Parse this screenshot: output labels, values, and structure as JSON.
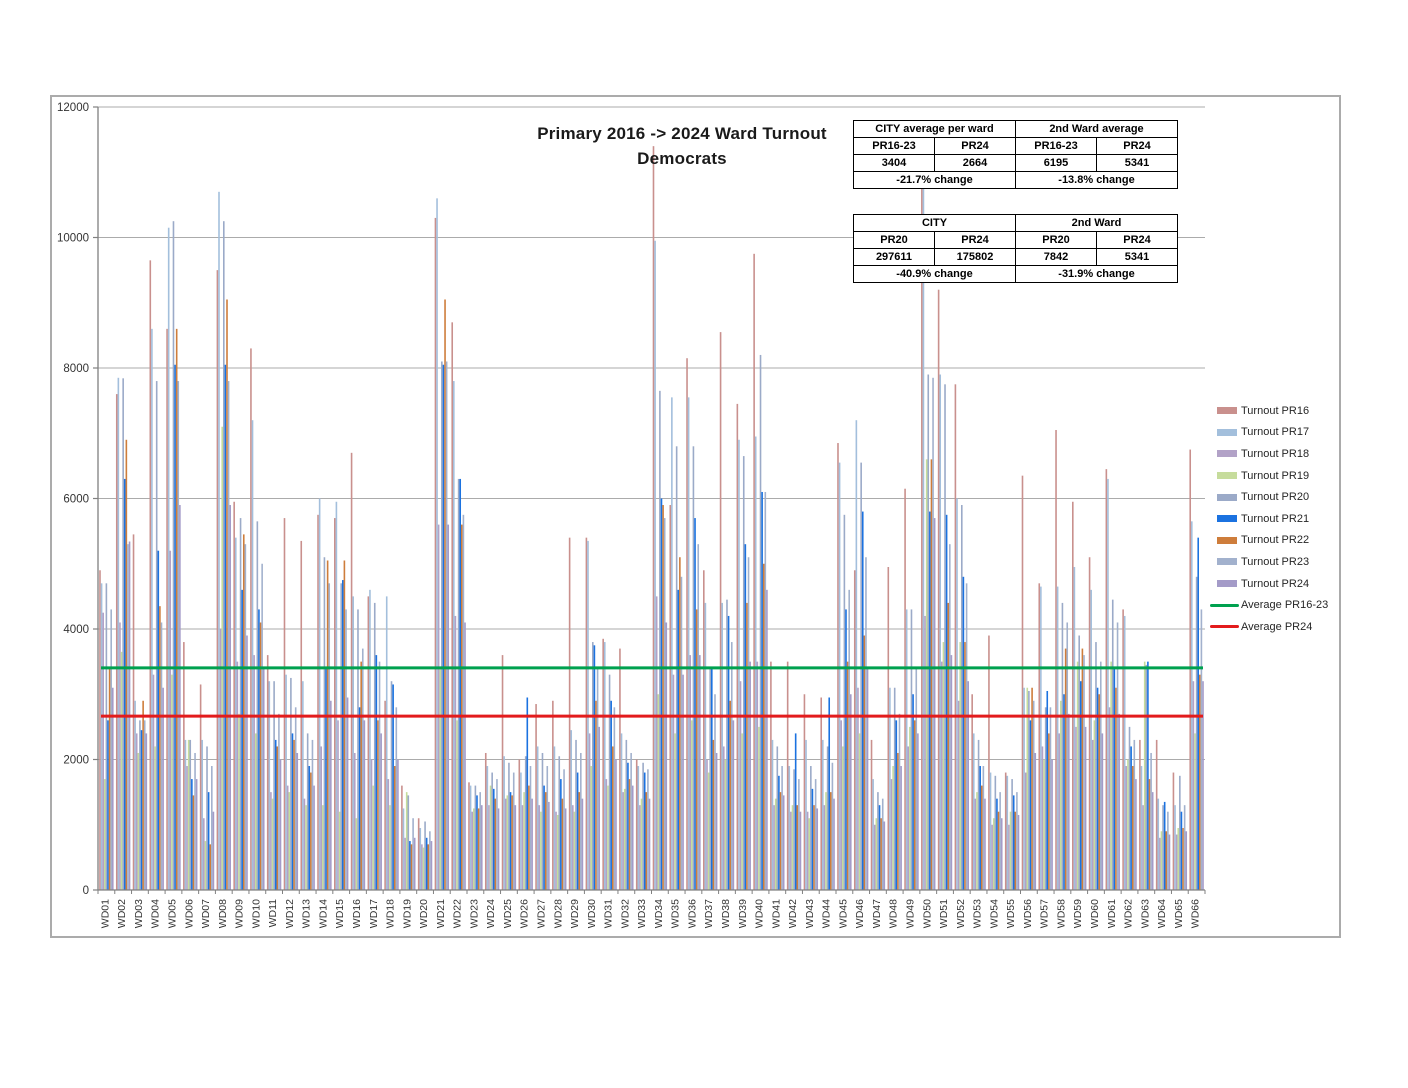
{
  "title": {
    "line1": "Primary 2016 -> 2024 Ward Turnout",
    "line2": "Democrats"
  },
  "tables": [
    {
      "group_headers": [
        "CITY average per ward",
        "2nd Ward average"
      ],
      "col_headers": [
        "PR16-23",
        "PR24",
        "PR16-23",
        "PR24"
      ],
      "values": [
        "3404",
        "2664",
        "6195",
        "5341"
      ],
      "footers": [
        "-21.7% change",
        "-13.8% change"
      ]
    },
    {
      "group_headers": [
        "CITY",
        "2nd Ward"
      ],
      "col_headers": [
        "PR20",
        "PR24",
        "PR20",
        "PR24"
      ],
      "values": [
        "297611",
        "175802",
        "7842",
        "5341"
      ],
      "footers": [
        "-40.9% change",
        "-31.9% change"
      ]
    }
  ],
  "chart_data": {
    "type": "bar",
    "title": "Primary 2016 -> 2024 Ward Turnout Democrats",
    "xlabel": "",
    "ylabel": "",
    "ylim": [
      0,
      12000
    ],
    "ytick_step": 2000,
    "yticks": [
      "0",
      "2000",
      "4000",
      "6000",
      "8000",
      "10000",
      "12000"
    ],
    "grid": true,
    "legend_position": "right",
    "categories": [
      "WD01",
      "WD02",
      "WD03",
      "WD04",
      "WD05",
      "WD06",
      "WD07",
      "WD08",
      "WD09",
      "WD10",
      "WD11",
      "WD12",
      "WD13",
      "WD14",
      "WD15",
      "WD16",
      "WD17",
      "WD18",
      "WD19",
      "WD20",
      "WD21",
      "WD22",
      "WD23",
      "WD24",
      "WD25",
      "WD26",
      "WD27",
      "WD28",
      "WD29",
      "WD30",
      "WD31",
      "WD32",
      "WD33",
      "WD34",
      "WD35",
      "WD36",
      "WD37",
      "WD38",
      "WD39",
      "WD40",
      "WD41",
      "WD42",
      "WD43",
      "WD44",
      "WD45",
      "WD46",
      "WD47",
      "WD48",
      "WD49",
      "WD50",
      "WD51",
      "WD52",
      "WD53",
      "WD54",
      "WD55",
      "WD56",
      "WD57",
      "WD58",
      "WD59",
      "WD60",
      "WD61",
      "WD62",
      "WD63",
      "WD64",
      "WD65",
      "WD66"
    ],
    "series": [
      {
        "name": "Turnout PR16",
        "color": "#C9908D",
        "values": [
          4900,
          7600,
          5450,
          9650,
          8600,
          3800,
          3150,
          9500,
          5950,
          8300,
          3600,
          5700,
          5350,
          5750,
          5700,
          6700,
          4500,
          2900,
          1600,
          1100,
          10300,
          8700,
          1650,
          2100,
          3600,
          2000,
          2850,
          2900,
          5400,
          5400,
          3850,
          3700,
          2000,
          11400,
          5900,
          8150,
          4900,
          8550,
          7450,
          9750,
          3500,
          3500,
          3000,
          2950,
          6850,
          4900,
          2300,
          4950,
          6150,
          11050,
          9200,
          7750,
          3000,
          3900,
          1800,
          6350,
          4700,
          7050,
          5950,
          5100,
          6450,
          4300,
          2300,
          2300,
          1800,
          6750
        ]
      },
      {
        "name": "Turnout PR17",
        "color": "#A3BFDC",
        "values": [
          4700,
          7850,
          2900,
          8600,
          10150,
          2300,
          2300,
          10700,
          5400,
          7200,
          3200,
          3300,
          3200,
          6000,
          5950,
          4500,
          4600,
          4500,
          1250,
          950,
          10600,
          7800,
          1600,
          1900,
          2050,
          1800,
          2200,
          2200,
          2450,
          5350,
          3800,
          2400,
          1900,
          9950,
          7550,
          7550,
          4400,
          4400,
          6900,
          6950,
          2300,
          1900,
          2300,
          2300,
          6550,
          7200,
          1700,
          3100,
          4300,
          10900,
          7900,
          6000,
          2400,
          1800,
          1750,
          3100,
          4650,
          4650,
          4950,
          4600,
          6300,
          4200,
          1900,
          1400,
          1300,
          5650
        ]
      },
      {
        "name": "Turnout PR18",
        "color": "#B2A2C7",
        "values": [
          4250,
          4100,
          2400,
          3300,
          5200,
          1900,
          1100,
          4000,
          3500,
          3600,
          1500,
          1600,
          1400,
          2200,
          2600,
          2100,
          2000,
          1700,
          800,
          700,
          5600,
          4200,
          1200,
          1300,
          1400,
          1300,
          1300,
          1200,
          1300,
          2400,
          1700,
          1500,
          1300,
          4500,
          3300,
          3600,
          2000,
          2200,
          3200,
          3500,
          1300,
          1200,
          1200,
          1300,
          2600,
          3100,
          1000,
          1700,
          2200,
          4200,
          3500,
          2900,
          1400,
          1000,
          1000,
          1800,
          2200,
          2400,
          2500,
          2300,
          2800,
          1900,
          1300,
          800,
          850,
          3200
        ]
      },
      {
        "name": "Turnout PR19",
        "color": "#C6DC9C",
        "values": [
          1700,
          3650,
          2100,
          2200,
          3300,
          2300,
          750,
          7100,
          2700,
          2400,
          1400,
          1500,
          1300,
          1300,
          1200,
          1100,
          1600,
          1300,
          1500,
          650,
          3400,
          2600,
          1250,
          1600,
          1450,
          1500,
          1200,
          1150,
          1200,
          1900,
          1600,
          1550,
          1400,
          3000,
          2400,
          2600,
          1800,
          2000,
          2400,
          2500,
          1400,
          1300,
          1100,
          1500,
          2200,
          2400,
          1100,
          1900,
          2500,
          6600,
          3800,
          3800,
          1500,
          1100,
          1200,
          3100,
          2000,
          2900,
          3500,
          2600,
          3500,
          2000,
          3500,
          900,
          950,
          2400
        ]
      },
      {
        "name": "Turnout PR20",
        "color": "#9BAAC8",
        "values": [
          4700,
          7842,
          2600,
          7800,
          10250,
          2300,
          2200,
          10250,
          5700,
          5650,
          3200,
          3250,
          2400,
          5100,
          4700,
          4300,
          4400,
          3200,
          1450,
          1050,
          8100,
          6300,
          1600,
          1800,
          1950,
          2050,
          2100,
          2050,
          2300,
          3800,
          3300,
          2300,
          1950,
          7650,
          6800,
          6800,
          3400,
          4450,
          6650,
          8200,
          2200,
          1850,
          1900,
          2200,
          5750,
          6550,
          1500,
          3100,
          4300,
          7900,
          7750,
          5900,
          2300,
          1750,
          1700,
          3050,
          2800,
          4400,
          3900,
          3800,
          4450,
          2500,
          3450,
          1300,
          1750,
          4800
        ]
      },
      {
        "name": "Turnout PR21",
        "color": "#1B72E0",
        "values": [
          2600,
          6300,
          2450,
          5200,
          8050,
          1700,
          1500,
          8050,
          4600,
          4300,
          2300,
          2400,
          1900,
          3400,
          4750,
          2800,
          3600,
          3150,
          750,
          800,
          8050,
          6300,
          1450,
          1550,
          1500,
          2950,
          1600,
          1700,
          1800,
          3750,
          2900,
          1950,
          1800,
          6000,
          4600,
          5700,
          3400,
          4200,
          5300,
          6100,
          1750,
          2400,
          1550,
          2950,
          4300,
          5800,
          1300,
          2600,
          3000,
          5800,
          5750,
          4800,
          1900,
          1400,
          1450,
          2600,
          3050,
          3000,
          3200,
          3100,
          3400,
          2200,
          3500,
          1350,
          1200,
          5400
        ]
      },
      {
        "name": "Turnout PR22",
        "color": "#CE7D3B",
        "values": [
          3400,
          6900,
          2900,
          4350,
          8600,
          1450,
          700,
          9050,
          5450,
          4100,
          2200,
          2300,
          1800,
          5050,
          5050,
          3500,
          2600,
          1900,
          700,
          700,
          9050,
          5600,
          1250,
          1400,
          1450,
          1600,
          1500,
          1400,
          1500,
          2900,
          2200,
          1700,
          1500,
          5900,
          5100,
          4300,
          2300,
          2900,
          4400,
          5000,
          1500,
          1300,
          1300,
          1500,
          3500,
          3900,
          1100,
          2100,
          2600,
          6600,
          4400,
          3800,
          1600,
          1200,
          1200,
          3100,
          2400,
          3700,
          3700,
          3000,
          3100,
          1900,
          1700,
          900,
          950,
          3300
        ]
      },
      {
        "name": "Turnout PR23",
        "color": "#A2B1CD",
        "values": [
          4300,
          5300,
          2600,
          4100,
          7800,
          2100,
          1900,
          7800,
          5300,
          5000,
          2700,
          2800,
          2300,
          4700,
          4300,
          3700,
          3500,
          2800,
          1100,
          900,
          8100,
          5750,
          1500,
          1700,
          1800,
          1900,
          1900,
          1850,
          2100,
          3400,
          2800,
          2100,
          1850,
          5700,
          4800,
          5300,
          3000,
          3800,
          5100,
          6100,
          1900,
          1700,
          1700,
          1950,
          4600,
          5100,
          1400,
          2700,
          3400,
          7850,
          5300,
          4700,
          1900,
          1500,
          1500,
          2900,
          2800,
          4100,
          3600,
          3500,
          4100,
          2300,
          2100,
          1200,
          1300,
          4300
        ]
      },
      {
        "name": "Turnout PR24",
        "color": "#A49BC8",
        "values": [
          3100,
          5341,
          2400,
          3100,
          5900,
          1700,
          1200,
          5900,
          3900,
          3400,
          2000,
          2100,
          1600,
          2900,
          2950,
          2600,
          2400,
          2000,
          800,
          750,
          5600,
          4100,
          1300,
          1250,
          1300,
          1400,
          1350,
          1250,
          1400,
          2500,
          2000,
          1600,
          1400,
          4100,
          3300,
          3600,
          2100,
          2600,
          3500,
          4600,
          1450,
          1200,
          1250,
          1400,
          3000,
          3400,
          1050,
          1900,
          2400,
          5700,
          3600,
          3200,
          1400,
          1100,
          1150,
          2100,
          2000,
          2700,
          2500,
          2400,
          2700,
          1700,
          1500,
          850,
          900,
          3200
        ]
      }
    ],
    "avg_lines": [
      {
        "name": "Average PR16-23",
        "color": "#00A14F",
        "value": 3404
      },
      {
        "name": "Average PR24",
        "color": "#E31B1C",
        "value": 2664
      }
    ]
  }
}
